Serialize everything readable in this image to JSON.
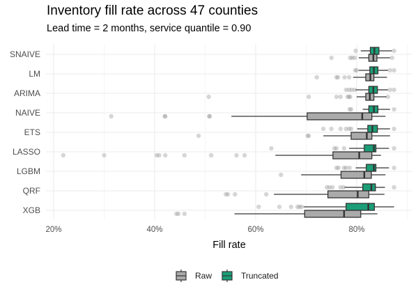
{
  "chart_data": {
    "type": "boxplot",
    "orientation": "horizontal",
    "title": "Inventory fill rate across 47 counties",
    "subtitle": "Lead time = 2 months, service quantile = 0.90",
    "xlabel": "Fill rate",
    "ylabel": "",
    "xlim": [
      17,
      91
    ],
    "x_ticks": [
      20,
      40,
      60,
      80
    ],
    "x_tick_labels": [
      "20%",
      "40%",
      "60%",
      "80%"
    ],
    "grid": true,
    "legend": {
      "position": "bottom",
      "entries": [
        {
          "name": "Raw",
          "color": "#aaaaaa"
        },
        {
          "name": "Truncated",
          "color": "#1b9e77"
        }
      ]
    },
    "categories": [
      "SNAIVE",
      "LM",
      "ARIMA",
      "NAIVE",
      "ETS",
      "LASSO",
      "LGBM",
      "QRF",
      "XGB"
    ],
    "series": [
      {
        "name": "Truncated",
        "color": "#1b9e77",
        "boxes": [
          {
            "whisker_low": 80.8,
            "q1": 82.7,
            "median": 83.5,
            "q3": 84.4,
            "whisker_high": 87.0,
            "outliers": [
              79.8,
              87.4
            ]
          },
          {
            "whisker_low": 80.4,
            "q1": 82.6,
            "median": 83.4,
            "q3": 84.2,
            "whisker_high": 86.2,
            "outliers": [
              79.7,
              80.0,
              86.6,
              87.4
            ]
          },
          {
            "whisker_low": 79.8,
            "q1": 82.4,
            "median": 83.3,
            "q3": 84.1,
            "whisker_high": 86.2,
            "outliers": [
              77.9,
              78.5,
              79.0,
              79.6,
              86.6,
              87.4
            ]
          },
          {
            "whisker_low": 81.2,
            "q1": 82.4,
            "median": 83.4,
            "q3": 84.2,
            "whisker_high": 86.6,
            "outliers": [
              78.6,
              78.9,
              87.4
            ]
          },
          {
            "whisker_low": 80.1,
            "q1": 82.2,
            "median": 83.1,
            "q3": 84.1,
            "whisker_high": 86.6,
            "outliers": [
              73.4,
              75.0,
              76.8,
              77.9,
              78.5,
              78.9,
              87.4
            ]
          },
          {
            "whisker_low": 78.5,
            "q1": 81.5,
            "median": 83.4,
            "q3": 83.8,
            "whisker_high": 86.4,
            "outliers": [
              63.1,
              75.6,
              76.0,
              77.5,
              87.4
            ]
          },
          {
            "whisker_low": 79.8,
            "q1": 81.9,
            "median": 83.4,
            "q3": 83.8,
            "whisker_high": 86.4,
            "outliers": [
              76.0,
              76.4,
              77.5,
              77.9,
              78.6,
              87.4
            ]
          },
          {
            "whisker_low": 77.6,
            "q1": 81.2,
            "median": 82.9,
            "q3": 83.7,
            "whisker_high": 85.6,
            "outliers": [
              74.1,
              74.6,
              75.2,
              76.8,
              77.4,
              87.4
            ]
          },
          {
            "whisker_low": 69.5,
            "q1": 77.9,
            "median": 82.3,
            "q3": 83.5,
            "whisker_high": 87.4,
            "outliers": [
              60.6,
              64.7,
              67.0,
              68.3,
              68.7,
              69.1
            ]
          }
        ]
      },
      {
        "name": "Raw",
        "color": "#aaaaaa",
        "boxes": [
          {
            "whisker_low": 80.4,
            "q1": 82.4,
            "median": 83.3,
            "q3": 84.0,
            "whisker_high": 86.6,
            "outliers": [
              75.0,
              78.7,
              79.1,
              79.6,
              87.0
            ]
          },
          {
            "whisker_low": 79.3,
            "q1": 81.8,
            "median": 82.7,
            "q3": 83.4,
            "whisker_high": 86.0,
            "outliers": [
              72.1,
              76.0,
              76.3,
              77.6,
              78.5
            ]
          },
          {
            "whisker_low": 80.0,
            "q1": 81.8,
            "median": 82.6,
            "q3": 83.4,
            "whisker_high": 85.9,
            "outliers": [
              50.7,
              70.5,
              76.0,
              76.8,
              78.2,
              78.5,
              78.7,
              86.2
            ]
          },
          {
            "whisker_low": 55.2,
            "q1": 70.2,
            "median": 81.1,
            "q3": 83.0,
            "whisker_high": 85.7,
            "outliers": [
              31.4,
              42.0,
              42.1,
              50.8,
              50.9
            ]
          },
          {
            "whisker_low": 73.4,
            "q1": 78.9,
            "median": 82.0,
            "q3": 83.0,
            "whisker_high": 86.6,
            "outliers": [
              48.7,
              70.3,
              70.5
            ]
          },
          {
            "whisker_low": 63.9,
            "q1": 75.3,
            "median": 80.5,
            "q3": 83.0,
            "whisker_high": 84.8,
            "outliers": [
              21.9,
              30.0,
              40.4,
              40.9,
              42.1,
              45.9,
              51.2,
              56.2,
              57.8
            ]
          },
          {
            "whisker_low": 69.0,
            "q1": 76.9,
            "median": 81.5,
            "q3": 82.9,
            "whisker_high": 85.7,
            "outliers": [
              65.0
            ]
          },
          {
            "whisker_low": 63.6,
            "q1": 74.3,
            "median": 80.2,
            "q3": 82.4,
            "whisker_high": 85.5,
            "outliers": [
              54.1,
              54.5,
              55.9,
              62.1
            ]
          },
          {
            "whisker_low": 55.8,
            "q1": 69.7,
            "median": 77.5,
            "q3": 80.8,
            "whisker_high": 84.1,
            "outliers": [
              44.3,
              44.7,
              45.9
            ]
          }
        ]
      }
    ]
  }
}
